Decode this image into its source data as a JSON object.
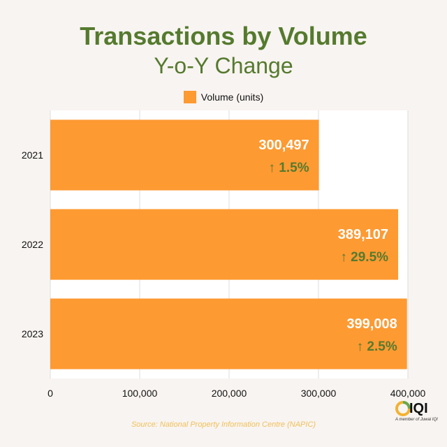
{
  "chart_data": {
    "type": "bar",
    "orientation": "horizontal",
    "title": "Transactions by Volume",
    "subtitle": "Y-o-Y Change",
    "categories": [
      "2021",
      "2022",
      "2023"
    ],
    "series": [
      {
        "name": "Volume (units)",
        "values": [
          300497,
          389107,
          399008
        ],
        "value_labels": [
          "300,497",
          "389,107",
          "399,008"
        ],
        "change_labels": [
          "↑ 1.5%",
          "↑ 29.5%",
          "↑ 2.5%"
        ]
      }
    ],
    "xlim": [
      0,
      400000
    ],
    "x_ticks": [
      0,
      100000,
      200000,
      300000,
      400000
    ],
    "x_tick_labels": [
      "0",
      "100,000",
      "200,000",
      "300,000",
      "400,000"
    ],
    "grid": true,
    "legend_position": "top-center"
  },
  "colors": {
    "bar": "#fd9a32",
    "title": "#557a2e",
    "change_text": "#557a2e",
    "value_text": "#ffffff",
    "background": "#f8f4f1",
    "source_text": "#f0c05a"
  },
  "source": "Source: National Property Information Centre (NAPIC)",
  "logo": {
    "icon": "iqi-logo-icon",
    "text": "IQI",
    "subtext": "A member of Juwai IQI"
  }
}
